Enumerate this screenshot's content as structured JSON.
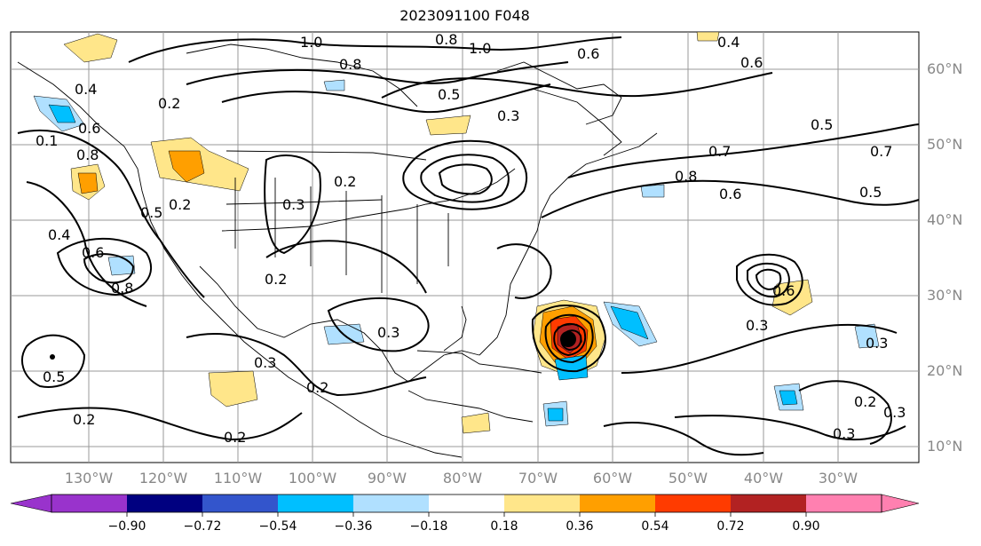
{
  "title": "2023091100 F048",
  "lon_labels": [
    "130°W",
    "120°W",
    "110°W",
    "100°W",
    "90°W",
    "80°W",
    "70°W",
    "60°W",
    "50°W",
    "40°W",
    "30°W"
  ],
  "lat_labels": [
    "60°N",
    "50°N",
    "40°N",
    "30°N",
    "20°N",
    "10°N"
  ],
  "colorbar": {
    "ticks": [
      "−0.90",
      "−0.72",
      "−0.54",
      "−0.36",
      "−0.18",
      "0.18",
      "0.36",
      "0.54",
      "0.72",
      "0.90"
    ],
    "colors": [
      "#9933cc",
      "#000080",
      "#3355cc",
      "#00bfff",
      "#b0e0ff",
      "#ffffff",
      "#ffe68a",
      "#ff9f00",
      "#ff3b00",
      "#b22222",
      "#ff80b0"
    ]
  },
  "contour_labels": [
    "1.0",
    "0.8",
    "1.0",
    "0.6",
    "0.4",
    "0.6",
    "0.8",
    "0.5",
    "0.3",
    "0.5",
    "0.7",
    "0.4",
    "0.6",
    "0.1",
    "0.2",
    "0.2",
    "0.8",
    "0.6",
    "0.4",
    "0.5",
    "0.8",
    "0.7",
    "0.8",
    "0.6",
    "0.5",
    "0.3",
    "0.3",
    "0.2",
    "0.2",
    "0.3",
    "0.2",
    "0.5",
    "0.2",
    "0.2",
    "0.3",
    "0.6",
    "0.3",
    "0.2",
    "0.3",
    "0.3"
  ]
}
